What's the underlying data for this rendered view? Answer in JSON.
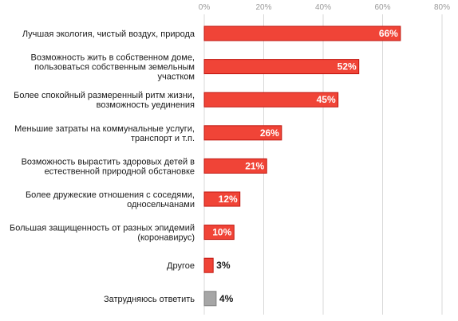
{
  "chart_data": {
    "type": "bar",
    "orientation": "horizontal",
    "title": "",
    "xlabel": "",
    "ylabel": "",
    "xlim": [
      0,
      80
    ],
    "ticks": [
      0,
      20,
      40,
      60,
      80
    ],
    "tick_labels": [
      "0%",
      "20%",
      "40%",
      "60%",
      "80%"
    ],
    "grid": true,
    "categories": [
      [
        "Лучшая экология, чистый воздух, природа"
      ],
      [
        "Возможность жить в собственном доме,",
        "пользоваться собственным земельным",
        "участком"
      ],
      [
        "Более спокойный размеренный ритм жизни,",
        "возможность уединения"
      ],
      [
        "Меньшие затраты на коммунальные услуги,",
        "транспорт и т.п."
      ],
      [
        "Возможность вырастить здоровых детей в",
        "естественной природной обстановке"
      ],
      [
        "Более дружеские отношения с соседями,",
        "односельчанами"
      ],
      [
        "Большая защищенность от разных эпидемий",
        "(коронавирус)"
      ],
      [
        "Другое"
      ],
      [
        "Затрудняюсь ответить"
      ]
    ],
    "values": [
      66,
      52,
      45,
      26,
      21,
      12,
      10,
      3,
      4
    ],
    "value_labels": [
      "66%",
      "52%",
      "45%",
      "26%",
      "21%",
      "12%",
      "10%",
      "3%",
      "4%"
    ],
    "colors": [
      "#f04437",
      "#f04437",
      "#f04437",
      "#f04437",
      "#f04437",
      "#f04437",
      "#f04437",
      "#f04437",
      "#a6a6a6"
    ],
    "edge_color": "#c0160f",
    "edge_color_neutral": "#7f7f7f",
    "grid_color": "#d9d9d9"
  }
}
